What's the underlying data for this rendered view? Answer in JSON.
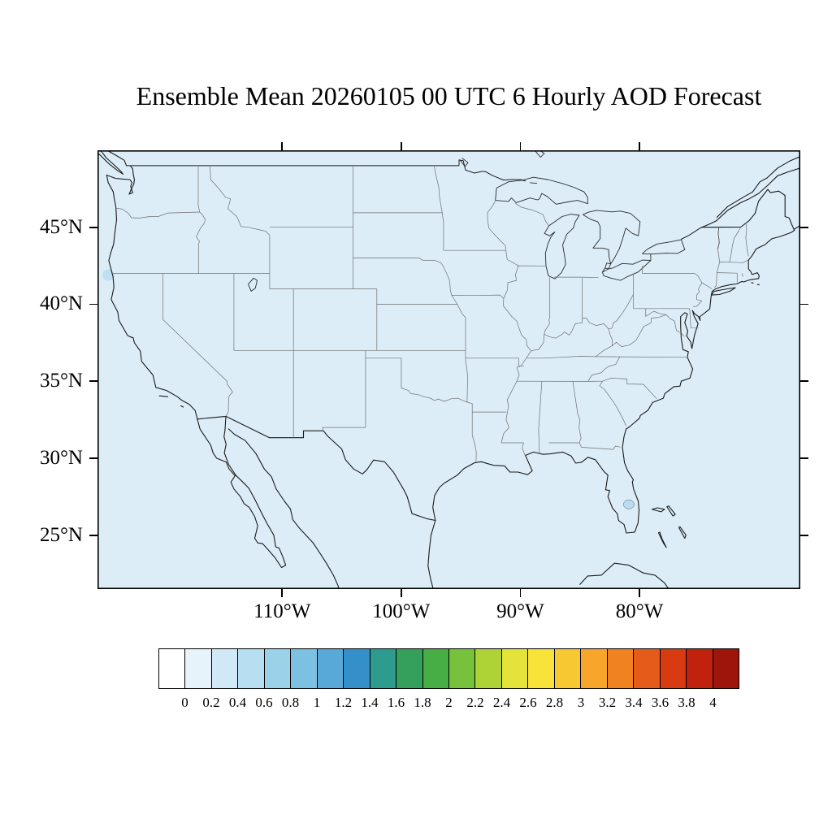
{
  "title": "Ensemble Mean 20260105 00 UTC 6 Hourly AOD Forecast",
  "map": {
    "fill_color": "#dcedf8",
    "field_appearance": "near-uniform low AOD shading (0–0.2 class) over entire domain with small light-blue spots near the northern California coast and south-central Florida",
    "lat_ticks": [
      {
        "value": 45,
        "label": "45°N"
      },
      {
        "value": 40,
        "label": "40°N"
      },
      {
        "value": 35,
        "label": "35°N"
      },
      {
        "value": 30,
        "label": "30°N"
      },
      {
        "value": 25,
        "label": "25°N"
      }
    ],
    "lon_ticks": [
      {
        "value": -110,
        "label": "110°W"
      },
      {
        "value": -100,
        "label": "100°W"
      },
      {
        "value": -90,
        "label": "90°W"
      },
      {
        "value": -80,
        "label": "80°W"
      }
    ]
  },
  "colorbar": {
    "tick_labels": [
      "0",
      "0.2",
      "0.4",
      "0.6",
      "0.8",
      "1",
      "1.2",
      "1.4",
      "1.6",
      "1.8",
      "2",
      "2.2",
      "2.4",
      "2.6",
      "2.8",
      "3",
      "3.2",
      "3.4",
      "3.6",
      "3.8",
      "4"
    ],
    "colors": [
      "#ffffff",
      "#e6f3fa",
      "#d1e9f6",
      "#b8def1",
      "#9cd1ea",
      "#7cc0e2",
      "#58a9d7",
      "#3590c9",
      "#2e9b8f",
      "#35a05c",
      "#46ae45",
      "#78c13d",
      "#aed336",
      "#e3e339",
      "#f7e33a",
      "#f8c832",
      "#f7a62b",
      "#f08222",
      "#e55c1a",
      "#d83a12",
      "#c0220e",
      "#9d150b"
    ]
  }
}
